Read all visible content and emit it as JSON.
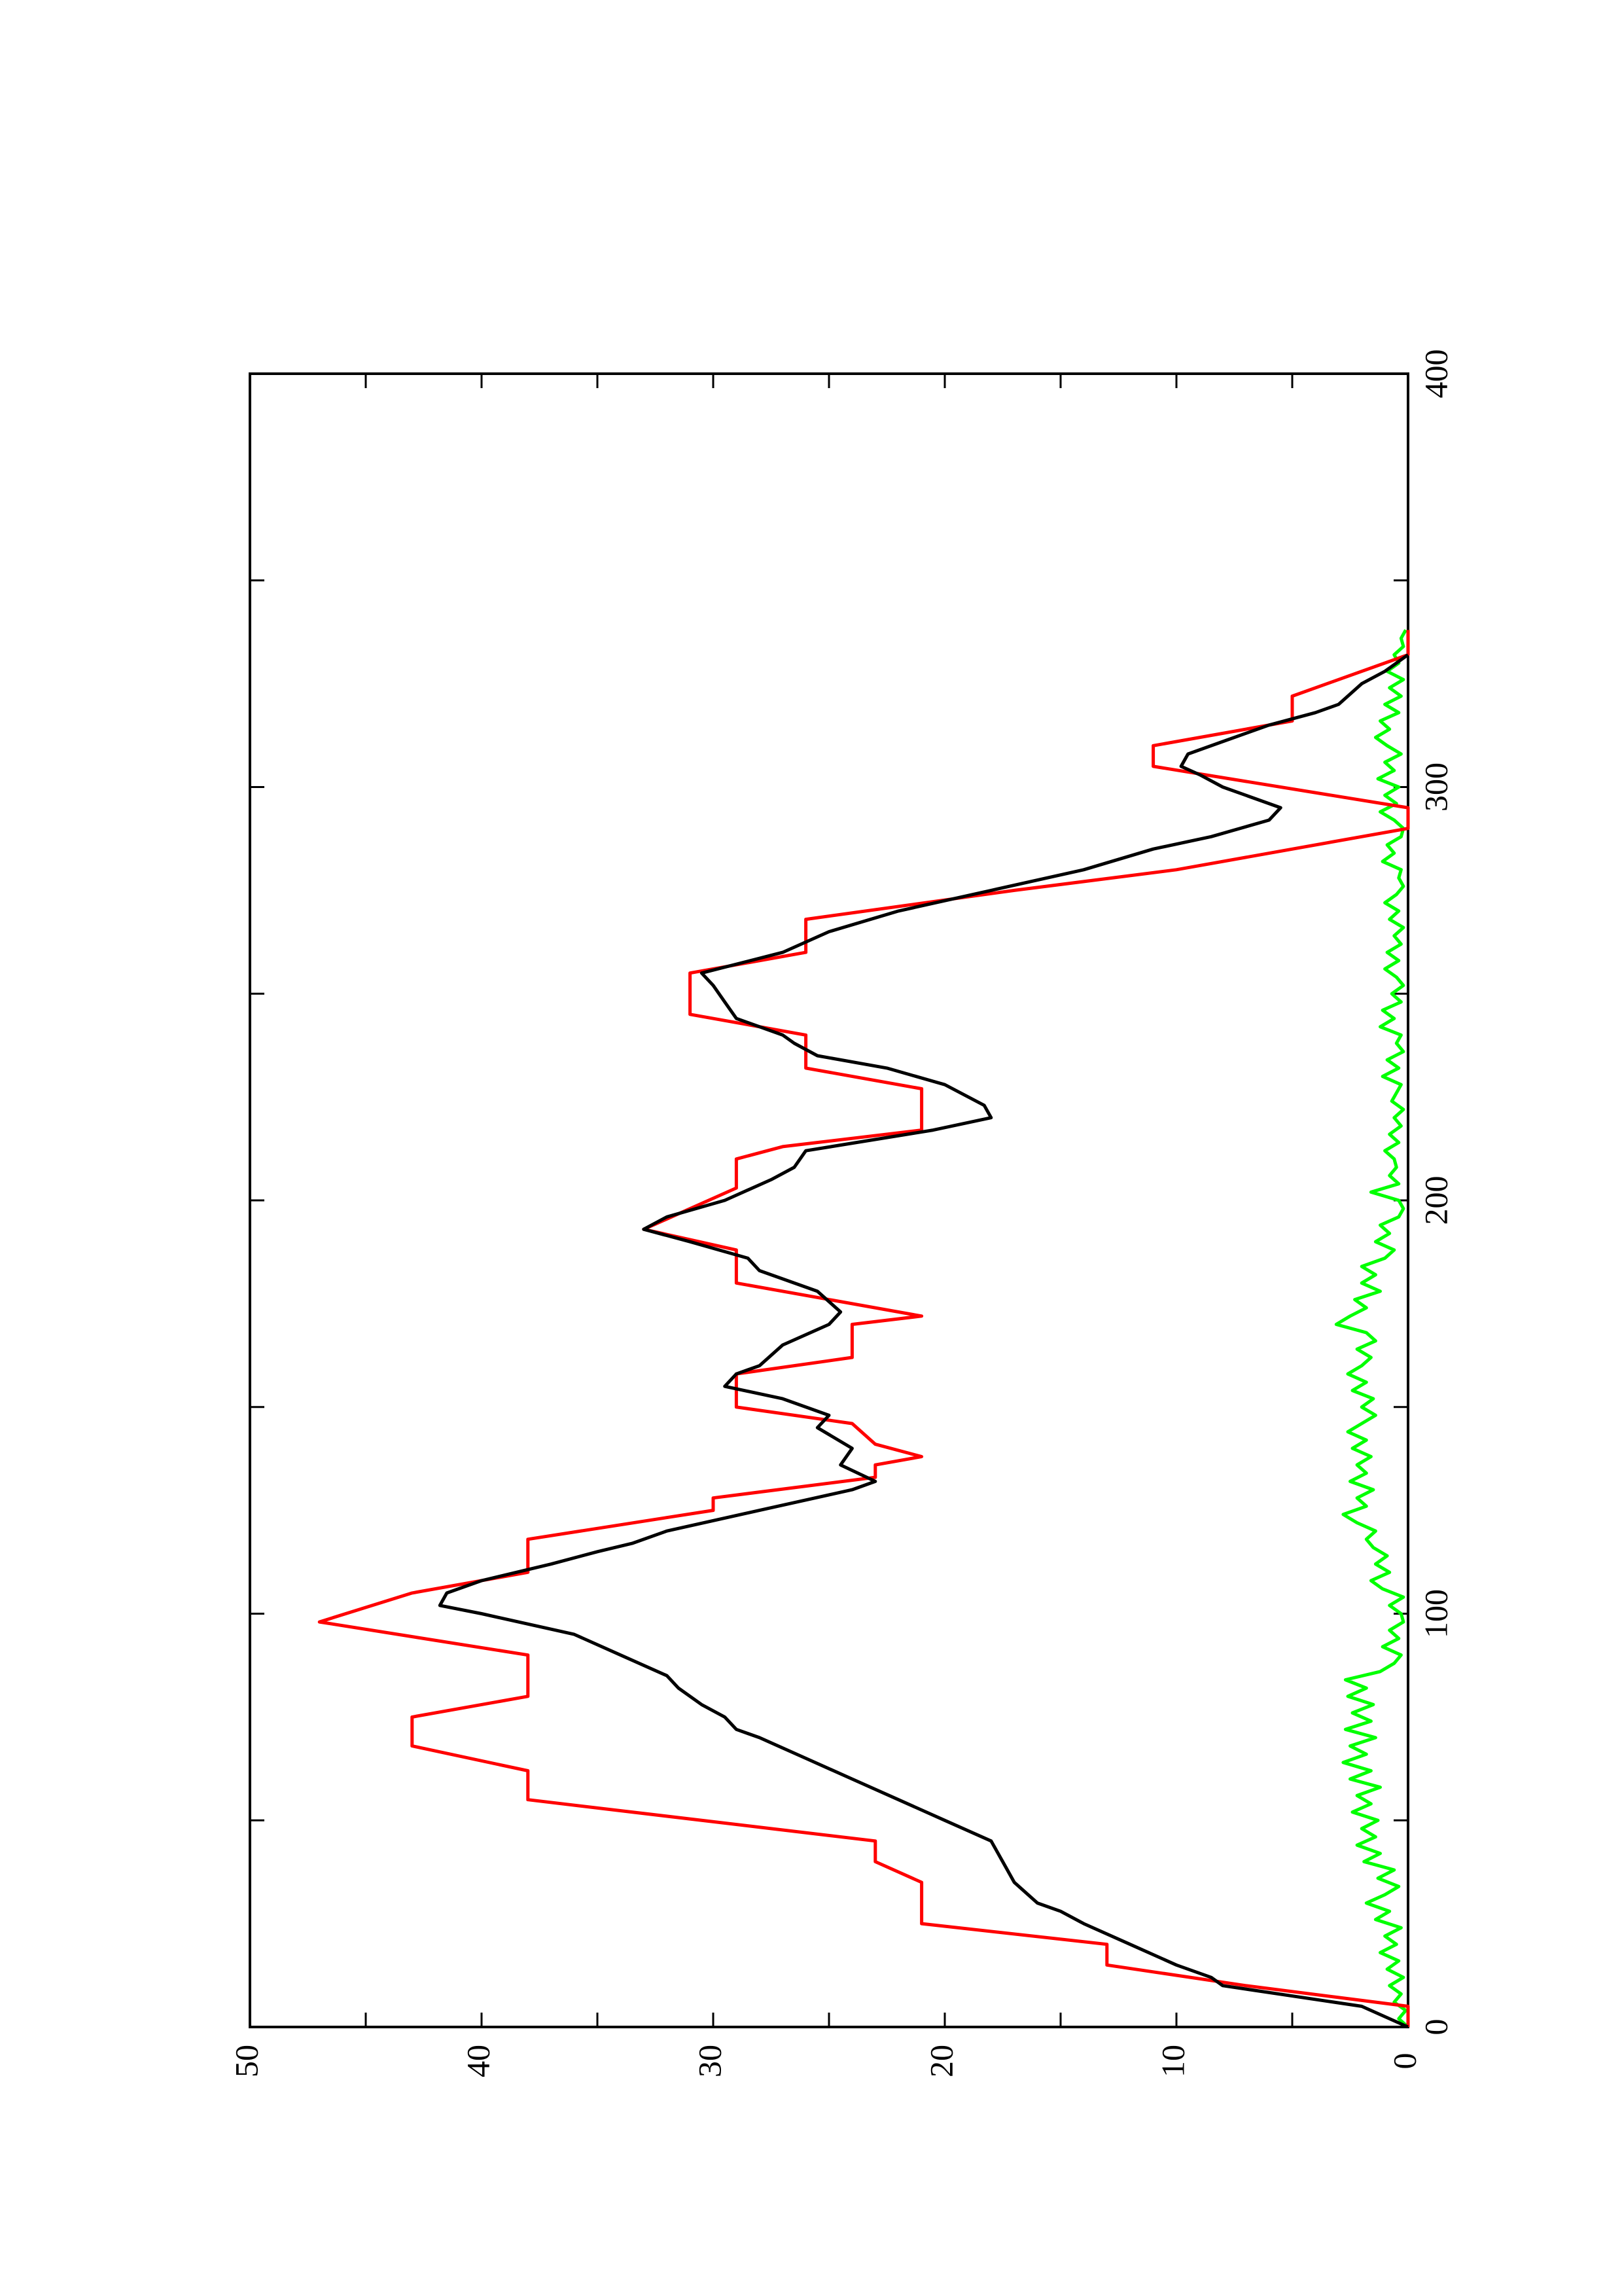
{
  "chart_data": {
    "type": "line",
    "orientation": "rotated 90 degrees counter-clockwise (x axis runs bottom to top)",
    "xlim": [
      0,
      400
    ],
    "ylim": [
      0,
      50
    ],
    "x_ticks": [
      0,
      100,
      200,
      300,
      400
    ],
    "y_ticks": [
      0,
      10,
      20,
      30,
      40,
      50
    ],
    "x_tick_labels": [
      "0",
      "100",
      "200",
      "300",
      "400"
    ],
    "y_tick_labels": [
      "0",
      "10",
      "20",
      "30",
      "40",
      "50"
    ],
    "x_minor_ticks": [
      50,
      150,
      250,
      350
    ],
    "y_minor_ticks": [
      5,
      15,
      25,
      35,
      45
    ],
    "grid": false,
    "legend": "none",
    "series": [
      {
        "color": "#ff0000",
        "style": "step",
        "points": [
          [
            0,
            0
          ],
          [
            5,
            0
          ],
          [
            10,
            7
          ],
          [
            15,
            13
          ],
          [
            20,
            13
          ],
          [
            25,
            21
          ],
          [
            35,
            21
          ],
          [
            40,
            23
          ],
          [
            45,
            23
          ],
          [
            55,
            38
          ],
          [
            62,
            38
          ],
          [
            68,
            43
          ],
          [
            75,
            43
          ],
          [
            80,
            38
          ],
          [
            90,
            38
          ],
          [
            98,
            47
          ],
          [
            105,
            43
          ],
          [
            110,
            38
          ],
          [
            118,
            38
          ],
          [
            125,
            30
          ],
          [
            128,
            30
          ],
          [
            133,
            23
          ],
          [
            136,
            23
          ],
          [
            138,
            21
          ],
          [
            141,
            23
          ],
          [
            146,
            24
          ],
          [
            150,
            29
          ],
          [
            158,
            29
          ],
          [
            162,
            24
          ],
          [
            170,
            24
          ],
          [
            172,
            21
          ],
          [
            180,
            29
          ],
          [
            188,
            29
          ],
          [
            193,
            33
          ],
          [
            203,
            29
          ],
          [
            210,
            29
          ],
          [
            213,
            27
          ],
          [
            217,
            21
          ],
          [
            227,
            21
          ],
          [
            232,
            26
          ],
          [
            240,
            26
          ],
          [
            245,
            31
          ],
          [
            255,
            31
          ],
          [
            260,
            26
          ],
          [
            268,
            26
          ],
          [
            275,
            17
          ],
          [
            280,
            10
          ],
          [
            290,
            0
          ],
          [
            295,
            0
          ],
          [
            305,
            11
          ],
          [
            310,
            11
          ],
          [
            316,
            5
          ],
          [
            322,
            5
          ],
          [
            332,
            0
          ],
          [
            338,
            0
          ]
        ]
      },
      {
        "color": "#000000",
        "style": "line",
        "points": [
          [
            0,
            0
          ],
          [
            5,
            2
          ],
          [
            10,
            8
          ],
          [
            12,
            8.5
          ],
          [
            15,
            10
          ],
          [
            20,
            12
          ],
          [
            25,
            14
          ],
          [
            28,
            15
          ],
          [
            30,
            16
          ],
          [
            35,
            17
          ],
          [
            40,
            17.5
          ],
          [
            45,
            18
          ],
          [
            50,
            20
          ],
          [
            55,
            22
          ],
          [
            60,
            24
          ],
          [
            65,
            26
          ],
          [
            70,
            28
          ],
          [
            72,
            29
          ],
          [
            75,
            29.5
          ],
          [
            78,
            30.5
          ],
          [
            82,
            31.5
          ],
          [
            85,
            32
          ],
          [
            90,
            34
          ],
          [
            95,
            36
          ],
          [
            100,
            40
          ],
          [
            102,
            41.8
          ],
          [
            105,
            41.5
          ],
          [
            108,
            40
          ],
          [
            112,
            37
          ],
          [
            115,
            35
          ],
          [
            117,
            33.5
          ],
          [
            120,
            32
          ],
          [
            125,
            28
          ],
          [
            130,
            24
          ],
          [
            132,
            23
          ],
          [
            136,
            24.5
          ],
          [
            140,
            24
          ],
          [
            145,
            25.5
          ],
          [
            148,
            25
          ],
          [
            152,
            27
          ],
          [
            155,
            29.5
          ],
          [
            158,
            29
          ],
          [
            160,
            28
          ],
          [
            165,
            27
          ],
          [
            170,
            25
          ],
          [
            173,
            24.5
          ],
          [
            178,
            25.5
          ],
          [
            183,
            28
          ],
          [
            186,
            28.5
          ],
          [
            190,
            31
          ],
          [
            193,
            33
          ],
          [
            196,
            32
          ],
          [
            200,
            29.5
          ],
          [
            205,
            27.5
          ],
          [
            208,
            26.5
          ],
          [
            212,
            26
          ],
          [
            217,
            20.5
          ],
          [
            220,
            18
          ],
          [
            223,
            18.3
          ],
          [
            228,
            20
          ],
          [
            232,
            22.5
          ],
          [
            235,
            25.5
          ],
          [
            238,
            26.5
          ],
          [
            240,
            27
          ],
          [
            244,
            29
          ],
          [
            248,
            29.5
          ],
          [
            252,
            30
          ],
          [
            255,
            30.5
          ],
          [
            260,
            27
          ],
          [
            265,
            25
          ],
          [
            270,
            22
          ],
          [
            275,
            18
          ],
          [
            280,
            14
          ],
          [
            285,
            11
          ],
          [
            288,
            8.5
          ],
          [
            292,
            6
          ],
          [
            295,
            5.5
          ],
          [
            300,
            8
          ],
          [
            303,
            9
          ],
          [
            305,
            9.8
          ],
          [
            308,
            9.5
          ],
          [
            311,
            8
          ],
          [
            315,
            6
          ],
          [
            318,
            4
          ],
          [
            320,
            3
          ],
          [
            325,
            2
          ],
          [
            328,
            1
          ],
          [
            332,
            0
          ]
        ]
      },
      {
        "color": "#00ff00",
        "style": "noisy line near zero",
        "points": [
          [
            0,
            0
          ],
          [
            2,
            0.4
          ],
          [
            4,
            0.1
          ],
          [
            6,
            0.6
          ],
          [
            8,
            0.3
          ],
          [
            10,
            0.8
          ],
          [
            12,
            0.2
          ],
          [
            14,
            0.9
          ],
          [
            16,
            0.4
          ],
          [
            18,
            1.2
          ],
          [
            20,
            0.5
          ],
          [
            22,
            1.0
          ],
          [
            24,
            0.3
          ],
          [
            26,
            1.4
          ],
          [
            28,
            0.8
          ],
          [
            30,
            1.8
          ],
          [
            32,
            1.0
          ],
          [
            34,
            0.4
          ],
          [
            36,
            1.3
          ],
          [
            38,
            0.6
          ],
          [
            40,
            1.9
          ],
          [
            42,
            1.2
          ],
          [
            44,
            2.2
          ],
          [
            46,
            1.4
          ],
          [
            48,
            2.0
          ],
          [
            50,
            1.3
          ],
          [
            52,
            2.4
          ],
          [
            54,
            1.6
          ],
          [
            56,
            2.2
          ],
          [
            58,
            1.2
          ],
          [
            60,
            2.5
          ],
          [
            62,
            1.6
          ],
          [
            64,
            2.8
          ],
          [
            66,
            1.8
          ],
          [
            68,
            2.5
          ],
          [
            70,
            1.4
          ],
          [
            72,
            2.7
          ],
          [
            74,
            1.6
          ],
          [
            76,
            2.4
          ],
          [
            78,
            1.5
          ],
          [
            80,
            2.6
          ],
          [
            82,
            1.8
          ],
          [
            84,
            2.7
          ],
          [
            86,
            1.2
          ],
          [
            88,
            0.6
          ],
          [
            90,
            0.3
          ],
          [
            92,
            1.1
          ],
          [
            94,
            0.4
          ],
          [
            96,
            0.8
          ],
          [
            98,
            0.2
          ],
          [
            100,
            0.3
          ],
          [
            102,
            0.8
          ],
          [
            104,
            0.2
          ],
          [
            106,
            1.1
          ],
          [
            108,
            1.6
          ],
          [
            110,
            0.8
          ],
          [
            112,
            1.4
          ],
          [
            114,
            0.9
          ],
          [
            116,
            1.5
          ],
          [
            118,
            1.8
          ],
          [
            120,
            1.4
          ],
          [
            122,
            2.2
          ],
          [
            124,
            2.8
          ],
          [
            126,
            1.8
          ],
          [
            128,
            2.2
          ],
          [
            130,
            1.5
          ],
          [
            132,
            2.5
          ],
          [
            134,
            1.8
          ],
          [
            136,
            2.2
          ],
          [
            138,
            1.6
          ],
          [
            140,
            2.4
          ],
          [
            142,
            1.8
          ],
          [
            144,
            2.6
          ],
          [
            146,
            2.0
          ],
          [
            148,
            1.4
          ],
          [
            150,
            2.0
          ],
          [
            152,
            1.5
          ],
          [
            154,
            2.4
          ],
          [
            156,
            1.8
          ],
          [
            158,
            2.6
          ],
          [
            160,
            2.0
          ],
          [
            162,
            1.6
          ],
          [
            164,
            2.2
          ],
          [
            166,
            1.4
          ],
          [
            168,
            1.8
          ],
          [
            170,
            3.1
          ],
          [
            172,
            2.5
          ],
          [
            174,
            1.8
          ],
          [
            176,
            2.3
          ],
          [
            178,
            1.2
          ],
          [
            180,
            2.0
          ],
          [
            182,
            1.4
          ],
          [
            184,
            2.0
          ],
          [
            186,
            1.0
          ],
          [
            188,
            0.6
          ],
          [
            190,
            1.4
          ],
          [
            192,
            0.8
          ],
          [
            194,
            1.2
          ],
          [
            196,
            0.4
          ],
          [
            198,
            0.2
          ],
          [
            200,
            0.4
          ],
          [
            202,
            1.6
          ],
          [
            204,
            0.4
          ],
          [
            206,
            0.8
          ],
          [
            208,
            0.5
          ],
          [
            210,
            0.6
          ],
          [
            212,
            1.0
          ],
          [
            214,
            0.4
          ],
          [
            216,
            0.8
          ],
          [
            218,
            0.3
          ],
          [
            220,
            0.6
          ],
          [
            222,
            0.2
          ],
          [
            224,
            0.7
          ],
          [
            226,
            0.5
          ],
          [
            228,
            0.3
          ],
          [
            230,
            1.1
          ],
          [
            232,
            0.4
          ],
          [
            234,
            0.9
          ],
          [
            236,
            0.2
          ],
          [
            238,
            0.5
          ],
          [
            240,
            0.3
          ],
          [
            242,
            1.2
          ],
          [
            244,
            0.6
          ],
          [
            246,
            1.1
          ],
          [
            248,
            0.3
          ],
          [
            250,
            0.7
          ],
          [
            252,
            0.2
          ],
          [
            254,
            0.5
          ],
          [
            256,
            1.0
          ],
          [
            258,
            0.4
          ],
          [
            260,
            0.9
          ],
          [
            262,
            0.3
          ],
          [
            264,
            0.6
          ],
          [
            266,
            0.2
          ],
          [
            268,
            0.8
          ],
          [
            270,
            0.4
          ],
          [
            272,
            1.0
          ],
          [
            274,
            0.5
          ],
          [
            276,
            0.2
          ],
          [
            278,
            0.4
          ],
          [
            280,
            0.3
          ],
          [
            282,
            1.1
          ],
          [
            284,
            0.6
          ],
          [
            286,
            0.9
          ],
          [
            288,
            0.3
          ],
          [
            290,
            0.2
          ],
          [
            292,
            0.6
          ],
          [
            294,
            1.2
          ],
          [
            296,
            0.5
          ],
          [
            298,
            1.0
          ],
          [
            300,
            0.4
          ],
          [
            302,
            1.3
          ],
          [
            304,
            0.6
          ],
          [
            306,
            1.0
          ],
          [
            308,
            0.3
          ],
          [
            310,
            0.9
          ],
          [
            312,
            1.4
          ],
          [
            314,
            0.8
          ],
          [
            316,
            1.2
          ],
          [
            318,
            0.4
          ],
          [
            320,
            1.0
          ],
          [
            322,
            0.3
          ],
          [
            324,
            0.8
          ],
          [
            326,
            0.2
          ],
          [
            328,
            0.9
          ],
          [
            330,
            0.4
          ],
          [
            332,
            0.6
          ],
          [
            334,
            0.2
          ],
          [
            336,
            0.3
          ],
          [
            338,
            0.1
          ]
        ]
      }
    ]
  }
}
